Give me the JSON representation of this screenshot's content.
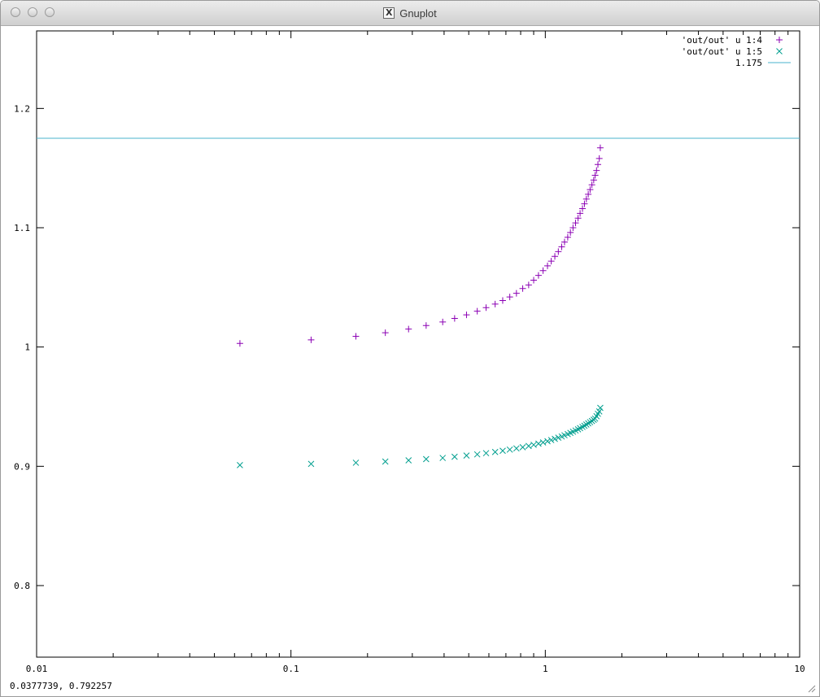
{
  "window": {
    "title": "Gnuplot"
  },
  "status": {
    "coords": "0.0377739,  0.792257"
  },
  "colors": {
    "series1": "#8b00b4",
    "series2": "#009e8e",
    "series3": "#49b3cc"
  },
  "chart_data": {
    "type": "scatter",
    "xscale": "log",
    "xlim": [
      0.01,
      10
    ],
    "ylim": [
      0.74,
      1.265
    ],
    "xticks": [
      {
        "value": 0.01,
        "label": "0.01"
      },
      {
        "value": 0.1,
        "label": "0.1"
      },
      {
        "value": 1,
        "label": "1"
      },
      {
        "value": 10,
        "label": "10"
      }
    ],
    "yticks": [
      {
        "value": 0.8,
        "label": "0.8"
      },
      {
        "value": 0.9,
        "label": "0.9"
      },
      {
        "value": 1,
        "label": "1"
      },
      {
        "value": 1.1,
        "label": "1.1"
      },
      {
        "value": 1.2,
        "label": "1.2"
      }
    ],
    "legend_position": "top-right",
    "series": [
      {
        "name": "'out/out' u 1:4",
        "marker": "plus",
        "x": [
          0.063,
          0.12,
          0.18,
          0.235,
          0.29,
          0.34,
          0.395,
          0.44,
          0.49,
          0.54,
          0.585,
          0.635,
          0.68,
          0.725,
          0.77,
          0.815,
          0.86,
          0.9,
          0.94,
          0.98,
          1.02,
          1.055,
          1.09,
          1.125,
          1.16,
          1.19,
          1.225,
          1.255,
          1.285,
          1.315,
          1.345,
          1.37,
          1.4,
          1.425,
          1.45,
          1.475,
          1.5,
          1.525,
          1.55,
          1.57,
          1.59,
          1.61,
          1.63,
          1.645
        ],
        "y": [
          1.003,
          1.006,
          1.009,
          1.012,
          1.015,
          1.018,
          1.021,
          1.024,
          1.027,
          1.03,
          1.033,
          1.036,
          1.039,
          1.042,
          1.045,
          1.049,
          1.052,
          1.056,
          1.06,
          1.064,
          1.068,
          1.072,
          1.076,
          1.08,
          1.084,
          1.088,
          1.092,
          1.096,
          1.1,
          1.104,
          1.108,
          1.112,
          1.116,
          1.12,
          1.124,
          1.128,
          1.132,
          1.136,
          1.14,
          1.144,
          1.148,
          1.153,
          1.158,
          1.167
        ]
      },
      {
        "name": "'out/out' u  1:5",
        "marker": "cross",
        "x": [
          0.063,
          0.12,
          0.18,
          0.235,
          0.29,
          0.34,
          0.395,
          0.44,
          0.49,
          0.54,
          0.585,
          0.635,
          0.68,
          0.725,
          0.77,
          0.815,
          0.86,
          0.9,
          0.94,
          0.98,
          1.02,
          1.055,
          1.09,
          1.125,
          1.16,
          1.19,
          1.225,
          1.255,
          1.285,
          1.315,
          1.345,
          1.37,
          1.4,
          1.425,
          1.45,
          1.475,
          1.5,
          1.525,
          1.55,
          1.57,
          1.59,
          1.61,
          1.63,
          1.645
        ],
        "y": [
          0.901,
          0.902,
          0.903,
          0.904,
          0.905,
          0.906,
          0.907,
          0.908,
          0.909,
          0.91,
          0.911,
          0.912,
          0.913,
          0.914,
          0.915,
          0.916,
          0.917,
          0.918,
          0.919,
          0.92,
          0.921,
          0.922,
          0.923,
          0.924,
          0.925,
          0.926,
          0.927,
          0.928,
          0.929,
          0.93,
          0.931,
          0.932,
          0.933,
          0.934,
          0.935,
          0.936,
          0.937,
          0.938,
          0.939,
          0.94,
          0.942,
          0.944,
          0.946,
          0.949
        ]
      },
      {
        "name": "1.175",
        "marker": "line",
        "constant": 1.175
      }
    ]
  }
}
